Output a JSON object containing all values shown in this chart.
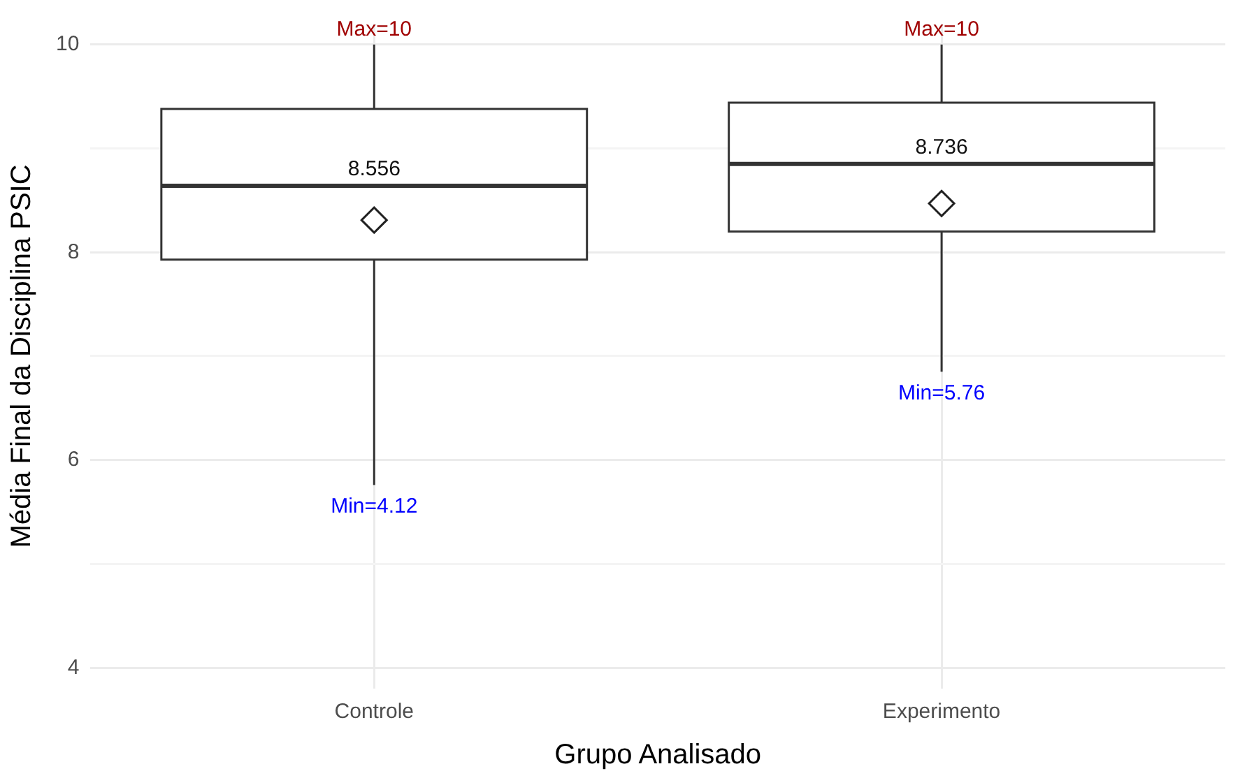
{
  "chart_data": {
    "type": "box",
    "xlabel": "Grupo Analisado",
    "ylabel": "Média Final da Disciplina PSIC",
    "categories": [
      "Controle",
      "Experimento"
    ],
    "boxes": [
      {
        "low": 5.76,
        "q1": 7.93,
        "median": 8.64,
        "q3": 9.38,
        "high": 10,
        "mean": 8.31
      },
      {
        "low": 6.85,
        "q1": 8.2,
        "median": 8.85,
        "q3": 9.44,
        "high": 10,
        "mean": 8.47
      }
    ],
    "ylim": [
      3.8,
      10.2
    ],
    "yticks": [
      4,
      {
        "value": 5,
        "label": null
      },
      6,
      {
        "value": 7,
        "label": null
      },
      8,
      {
        "value": 9,
        "label": null
      },
      10
    ],
    "grid": true,
    "marker": "diamond",
    "legend": false,
    "annotations": [
      {
        "text": "Max=10",
        "x": "Controle",
        "y": 10
      },
      {
        "text": "Max=10",
        "x": "Experimento",
        "y": 10
      },
      {
        "text": "8.556",
        "x": "Controle",
        "y": 8.64
      },
      {
        "text": "8.736",
        "x": "Experimento",
        "y": 8.85
      },
      "Min=4.12",
      "Min=5.76"
    ]
  }
}
